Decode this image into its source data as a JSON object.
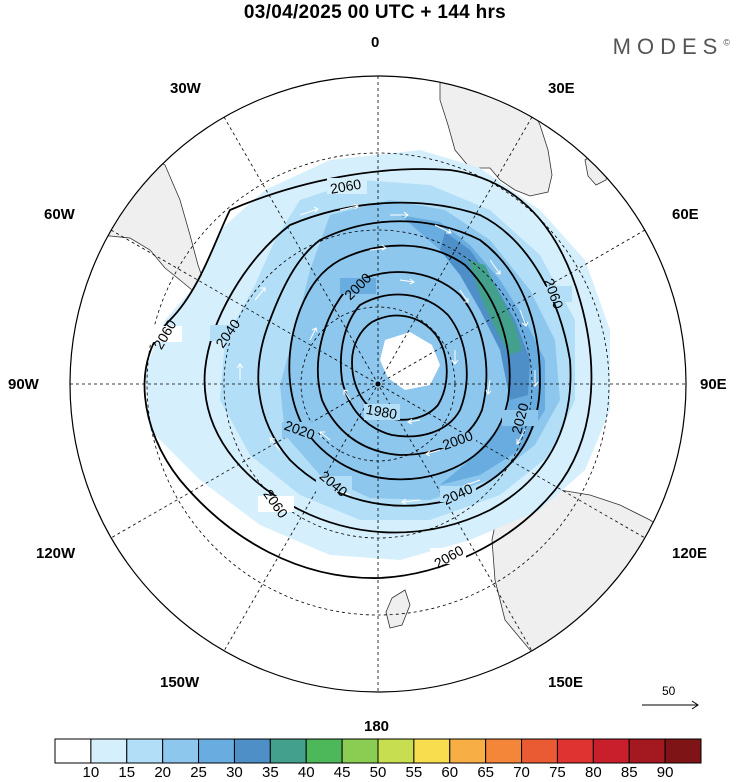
{
  "header": {
    "title": "03/04/2025  00 UTC  + 144 hrs",
    "brand": "MODES",
    "brand_mark": "©"
  },
  "map": {
    "projection": "south polar stereographic",
    "longitude_labels": {
      "top": "0",
      "top_right": "30E",
      "right_upper": "60E",
      "right": "90E",
      "right_lower": "120E",
      "bottom_right": "150E",
      "bottom": "180",
      "bottom_left": "150W",
      "left_lower": "120W",
      "left": "90W",
      "left_upper": "60W",
      "top_left": "30W"
    },
    "contour_labels": [
      "2060",
      "2060",
      "2060",
      "2060",
      "2060",
      "2040",
      "2040",
      "2040",
      "2020",
      "2020",
      "2000",
      "2000",
      "1980"
    ],
    "land_color": "#f1f1f1",
    "coast_color": "#333333"
  },
  "vector_reference": {
    "label": "50"
  },
  "colorbar": {
    "labels": [
      "10",
      "15",
      "20",
      "25",
      "30",
      "35",
      "40",
      "45",
      "50",
      "55",
      "60",
      "65",
      "70",
      "75",
      "80",
      "85",
      "90"
    ],
    "colors": [
      "#ffffff",
      "#d6effc",
      "#b2dff7",
      "#8ec7ee",
      "#69ace0",
      "#4e8fc8",
      "#42a08c",
      "#4cb85a",
      "#8bcd52",
      "#c6de4f",
      "#f8de4f",
      "#f7ae45",
      "#f4863a",
      "#ea5a33",
      "#df3331",
      "#c91f2c",
      "#a3191f",
      "#7f1416"
    ]
  }
}
